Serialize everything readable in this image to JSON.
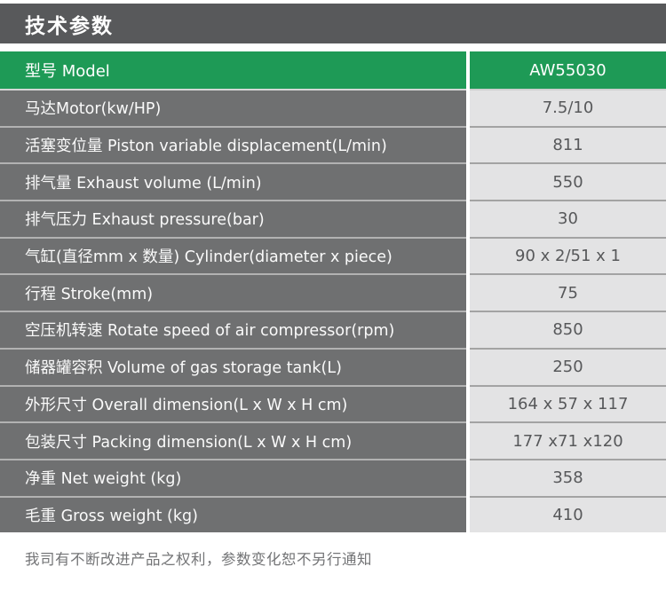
{
  "page_title": "技术参数",
  "colors": {
    "title_bar": "#58595B",
    "accent_green": "#1E9A56",
    "label_cell": "#6F7071",
    "value_cell": "#E3E3E4",
    "label_text": "#FFFFFF",
    "value_text": "#57585A",
    "footer_text": "#737476"
  },
  "table": {
    "header": {
      "label": "型号 Model",
      "value": "AW55030"
    },
    "rows": [
      {
        "label": "马达Motor(kw/HP)",
        "value": "7.5/10"
      },
      {
        "label": "活塞变位量 Piston variable displacement(L/min)",
        "value": "811"
      },
      {
        "label": "排气量 Exhaust volume (L/min)",
        "value": "550"
      },
      {
        "label": "排气压力 Exhaust pressure(bar)",
        "value": "30"
      },
      {
        "label": "气缸(直径mm x 数量) Cylinder(diameter x piece)",
        "value": "90 x 2/51 x 1"
      },
      {
        "label": "行程 Stroke(mm)",
        "value": "75"
      },
      {
        "label": "空压机转速 Rotate speed of air compressor(rpm)",
        "value": "850"
      },
      {
        "label": "储器罐容积 Volume of gas storage tank(L)",
        "value": "250"
      },
      {
        "label": "外形尺寸 Overall dimension(L x W x H cm)",
        "value": "164 x 57 x 117"
      },
      {
        "label": "包装尺寸 Packing dimension(L x W x H cm)",
        "value": "177 x71 x120"
      },
      {
        "label": "净重 Net weight (kg)",
        "value": "358"
      },
      {
        "label": "毛重 Gross weight (kg)",
        "value": "410"
      }
    ]
  },
  "footer": {
    "note": "我司有不断改进产品之权利，参数变化恕不另行通知"
  }
}
